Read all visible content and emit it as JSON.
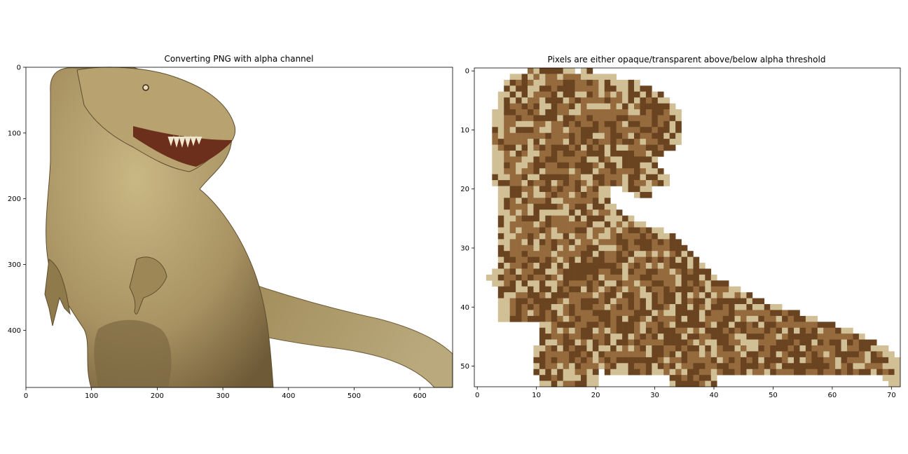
{
  "chart_data": [
    {
      "type": "image",
      "title": "Converting PNG with alpha channel",
      "xlabel": "",
      "ylabel": "",
      "xlim": [
        0,
        650
      ],
      "ylim": [
        487,
        0
      ],
      "x_ticks": [
        0,
        100,
        200,
        300,
        400,
        500,
        600
      ],
      "y_ticks": [
        0,
        100,
        200,
        300,
        400
      ],
      "content": "photo of a Tyrannosaurus rex on a transparent background"
    },
    {
      "type": "heatmap",
      "title": "Pixels are either opaque/transparent above/below alpha threshold",
      "xlabel": "",
      "ylabel": "",
      "xlim": [
        -0.5,
        71.5
      ],
      "ylim": [
        53.5,
        -0.5
      ],
      "x_ticks": [
        0,
        10,
        20,
        30,
        40,
        50,
        60,
        70
      ],
      "y_ticks": [
        0,
        10,
        20,
        30,
        40,
        50
      ],
      "palette": [
        "#d1bf95",
        "#956a3d",
        "#6a4320"
      ],
      "content": "pixelated T-rex silhouette, three tan/brown shades"
    }
  ],
  "colors": {
    "light": "#d1bf95",
    "mid": "#956a3d",
    "dark": "#6a4320"
  }
}
